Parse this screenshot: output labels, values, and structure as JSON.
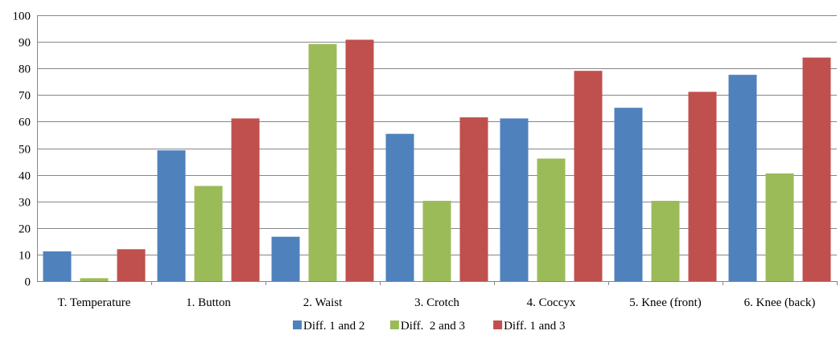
{
  "chart_data": {
    "type": "bar",
    "categories": [
      "T. Temperature",
      "1. Button",
      "2. Waist",
      "3. Crotch",
      "4. Coccyx",
      "5. Knee (front)",
      "6. Knee (back)"
    ],
    "series": [
      {
        "name": "Diff. 1 and 2",
        "color": "#4F81BD",
        "values": [
          11.2,
          49.2,
          16.7,
          55.4,
          61.2,
          65.2,
          77.6
        ]
      },
      {
        "name": "Diff.  2 and 3",
        "color": "#9BBB59",
        "values": [
          1.1,
          35.8,
          89.2,
          30.2,
          46.1,
          30.2,
          40.5
        ]
      },
      {
        "name": "Diff. 1 and 3",
        "color": "#C0504D",
        "values": [
          12.0,
          61.2,
          90.8,
          61.6,
          79.1,
          71.2,
          84.1
        ]
      }
    ],
    "ylim": [
      0,
      100
    ],
    "yticks": [
      0,
      10,
      20,
      30,
      40,
      50,
      60,
      70,
      80,
      90,
      100
    ],
    "grid": true,
    "legend_position": "bottom-center",
    "axis_color": "#868686"
  }
}
